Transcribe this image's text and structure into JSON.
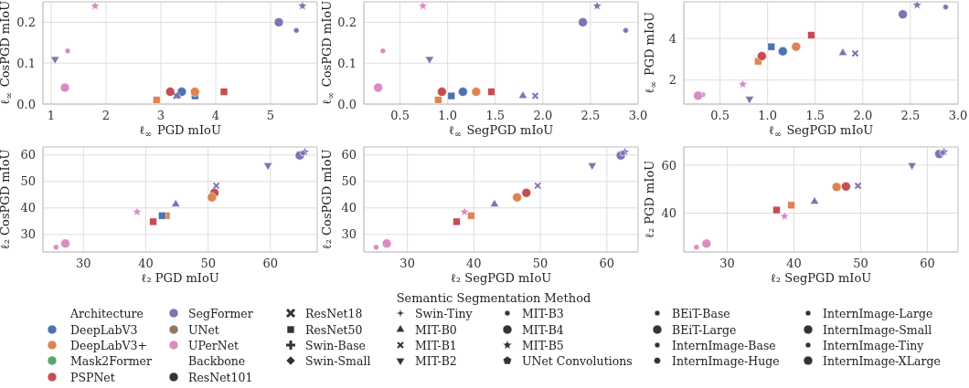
{
  "chart_data": [
    {
      "type": "scatter",
      "xlabel": "ℓ$_{∞}$ PGD mIoU",
      "ylabel": "ℓ$_{∞}$ CosPGD mIoU",
      "xlim": [
        0.85,
        5.85
      ],
      "ylim": [
        0,
        0.25
      ],
      "xticks": [
        1,
        2,
        3,
        4,
        5
      ],
      "yticks": [
        {
          "value": 0,
          "label": "0.0"
        },
        0.1,
        0.2
      ],
      "grid": true,
      "series": [
        {
          "color": "#da8bc3",
          "marker": "star",
          "x": [
            1.8
          ],
          "values": [
            0.24
          ]
        },
        {
          "color": "#da8bc3",
          "marker": "point",
          "x": [
            1.3
          ],
          "values": [
            0.13
          ]
        },
        {
          "color": "#da8bc3",
          "marker": "circle",
          "x": [
            1.25
          ],
          "values": [
            0.04
          ]
        },
        {
          "color": "#8172b3",
          "marker": "triangle-down",
          "x": [
            1.07
          ],
          "values": [
            0.11
          ]
        },
        {
          "color": "#dd8452",
          "marker": "square",
          "x": [
            2.92
          ],
          "values": [
            0.01
          ]
        },
        {
          "color": "#c44e52",
          "marker": "circle",
          "x": [
            3.17
          ],
          "values": [
            0.03
          ]
        },
        {
          "color": "#4c72b0",
          "marker": "circle",
          "x": [
            3.38
          ],
          "values": [
            0.03
          ]
        },
        {
          "color": "#4c72b0",
          "marker": "square",
          "x": [
            3.62
          ],
          "values": [
            0.02
          ]
        },
        {
          "color": "#dd8452",
          "marker": "circle",
          "x": [
            3.62
          ],
          "values": [
            0.03
          ]
        },
        {
          "color": "#c44e52",
          "marker": "square",
          "x": [
            4.15
          ],
          "values": [
            0.03
          ]
        },
        {
          "color": "#8172b3",
          "marker": "triangle",
          "x": [
            3.3
          ],
          "values": [
            0.02
          ]
        },
        {
          "color": "#8172b3",
          "marker": "x",
          "x": [
            3.28
          ],
          "values": [
            0.02
          ]
        },
        {
          "color": "#8172b3",
          "marker": "circle",
          "x": [
            5.15
          ],
          "values": [
            0.2
          ]
        },
        {
          "color": "#8172b3",
          "marker": "star",
          "x": [
            5.58
          ],
          "values": [
            0.24
          ]
        },
        {
          "color": "#8172b3",
          "marker": "point",
          "x": [
            5.47
          ],
          "values": [
            0.18
          ]
        }
      ]
    },
    {
      "type": "scatter",
      "xlabel": "ℓ$_{∞}$ SegPGD mIoU",
      "ylabel": "ℓ$_{∞}$ CosPGD mIoU",
      "xlim": [
        0.12,
        3.0
      ],
      "ylim": [
        0,
        0.25
      ],
      "xticks": [
        0.5,
        {
          "value": 1,
          "label": "1.0"
        },
        1.5,
        {
          "value": 2,
          "label": "2.0"
        },
        2.5,
        {
          "value": 3,
          "label": "3.0"
        }
      ],
      "yticks": [
        {
          "value": 0,
          "label": "0.0"
        },
        0.1,
        0.2
      ],
      "grid": true,
      "series": [
        {
          "color": "#da8bc3",
          "marker": "star",
          "x": [
            0.74
          ],
          "values": [
            0.24
          ]
        },
        {
          "color": "#da8bc3",
          "marker": "point",
          "x": [
            0.32
          ],
          "values": [
            0.13
          ]
        },
        {
          "color": "#da8bc3",
          "marker": "circle",
          "x": [
            0.27
          ],
          "values": [
            0.04
          ]
        },
        {
          "color": "#8172b3",
          "marker": "triangle-down",
          "x": [
            0.81
          ],
          "values": [
            0.11
          ]
        },
        {
          "color": "#dd8452",
          "marker": "square",
          "x": [
            0.9
          ],
          "values": [
            0.01
          ]
        },
        {
          "color": "#c44e52",
          "marker": "circle",
          "x": [
            0.94
          ],
          "values": [
            0.03
          ]
        },
        {
          "color": "#4c72b0",
          "marker": "circle",
          "x": [
            1.16
          ],
          "values": [
            0.03
          ]
        },
        {
          "color": "#4c72b0",
          "marker": "square",
          "x": [
            1.04
          ],
          "values": [
            0.02
          ]
        },
        {
          "color": "#dd8452",
          "marker": "circle",
          "x": [
            1.3
          ],
          "values": [
            0.03
          ]
        },
        {
          "color": "#c44e52",
          "marker": "square",
          "x": [
            1.46
          ],
          "values": [
            0.03
          ]
        },
        {
          "color": "#8172b3",
          "marker": "triangle",
          "x": [
            1.79
          ],
          "values": [
            0.02
          ]
        },
        {
          "color": "#8172b3",
          "marker": "x",
          "x": [
            1.92
          ],
          "values": [
            0.02
          ]
        },
        {
          "color": "#8172b3",
          "marker": "circle",
          "x": [
            2.42
          ],
          "values": [
            0.2
          ]
        },
        {
          "color": "#8172b3",
          "marker": "star",
          "x": [
            2.57
          ],
          "values": [
            0.24
          ]
        },
        {
          "color": "#8172b3",
          "marker": "point",
          "x": [
            2.87
          ],
          "values": [
            0.18
          ]
        }
      ]
    },
    {
      "type": "scatter",
      "xlabel": "ℓ$_{∞}$ SegPGD mIoU",
      "ylabel": "ℓ$_{∞}$ PGD mIoU",
      "xlim": [
        0.12,
        3.0
      ],
      "ylim": [
        0.85,
        5.75
      ],
      "xticks": [
        0.5,
        {
          "value": 1,
          "label": "1.0"
        },
        1.5,
        {
          "value": 2,
          "label": "2.0"
        },
        2.5,
        {
          "value": 3,
          "label": "3.0"
        }
      ],
      "yticks": [
        2,
        4
      ],
      "grid": true,
      "series": [
        {
          "color": "#da8bc3",
          "marker": "star",
          "x": [
            0.74
          ],
          "values": [
            1.8
          ]
        },
        {
          "color": "#da8bc3",
          "marker": "point",
          "x": [
            0.32
          ],
          "values": [
            1.3
          ]
        },
        {
          "color": "#da8bc3",
          "marker": "circle",
          "x": [
            0.27
          ],
          "values": [
            1.25
          ]
        },
        {
          "color": "#8172b3",
          "marker": "triangle-down",
          "x": [
            0.81
          ],
          "values": [
            1.1
          ]
        },
        {
          "color": "#dd8452",
          "marker": "square",
          "x": [
            0.9
          ],
          "values": [
            2.9
          ]
        },
        {
          "color": "#c44e52",
          "marker": "circle",
          "x": [
            0.94
          ],
          "values": [
            3.15
          ]
        },
        {
          "color": "#4c72b0",
          "marker": "circle",
          "x": [
            1.16
          ],
          "values": [
            3.38
          ]
        },
        {
          "color": "#4c72b0",
          "marker": "square",
          "x": [
            1.04
          ],
          "values": [
            3.6
          ]
        },
        {
          "color": "#dd8452",
          "marker": "circle",
          "x": [
            1.3
          ],
          "values": [
            3.6
          ]
        },
        {
          "color": "#c44e52",
          "marker": "square",
          "x": [
            1.46
          ],
          "values": [
            4.15
          ]
        },
        {
          "color": "#8172b3",
          "marker": "triangle",
          "x": [
            1.79
          ],
          "values": [
            3.3
          ]
        },
        {
          "color": "#8172b3",
          "marker": "x",
          "x": [
            1.92
          ],
          "values": [
            3.28
          ]
        },
        {
          "color": "#8172b3",
          "marker": "circle",
          "x": [
            2.42
          ],
          "values": [
            5.15
          ]
        },
        {
          "color": "#8172b3",
          "marker": "star",
          "x": [
            2.57
          ],
          "values": [
            5.6
          ]
        },
        {
          "color": "#8172b3",
          "marker": "point",
          "x": [
            2.87
          ],
          "values": [
            5.5
          ]
        }
      ]
    },
    {
      "type": "scatter",
      "xlabel": "ℓ₂ PGD mIoU",
      "ylabel": "ℓ₂ CosPGD mIoU",
      "xlim": [
        23.5,
        67.5
      ],
      "ylim": [
        23.4,
        63
      ],
      "xticks": [
        30,
        40,
        50,
        60
      ],
      "yticks": [
        30,
        40,
        50,
        60
      ],
      "grid": true,
      "series": [
        {
          "color": "#da8bc3",
          "marker": "star",
          "x": [
            38.6
          ],
          "values": [
            38.5
          ]
        },
        {
          "color": "#da8bc3",
          "marker": "point",
          "x": [
            25.6
          ],
          "values": [
            25.2
          ]
        },
        {
          "color": "#da8bc3",
          "marker": "circle",
          "x": [
            27.1
          ],
          "values": [
            26.6
          ]
        },
        {
          "color": "#8172b3",
          "marker": "triangle-down",
          "x": [
            59.6
          ],
          "values": [
            56.1
          ]
        },
        {
          "color": "#dd8452",
          "marker": "square",
          "x": [
            43.3
          ],
          "values": [
            37.1
          ]
        },
        {
          "color": "#c44e52",
          "marker": "circle",
          "x": [
            51.0
          ],
          "values": [
            45.7
          ]
        },
        {
          "color": "#4c72b0",
          "marker": "square",
          "x": [
            42.6
          ],
          "values": [
            37.1
          ]
        },
        {
          "color": "#dd8452",
          "marker": "circle",
          "x": [
            50.6
          ],
          "values": [
            44.0
          ]
        },
        {
          "color": "#c44e52",
          "marker": "square",
          "x": [
            41.2
          ],
          "values": [
            34.8
          ]
        },
        {
          "color": "#8172b3",
          "marker": "triangle",
          "x": [
            44.8
          ],
          "values": [
            41.4
          ]
        },
        {
          "color": "#8172b3",
          "marker": "x",
          "x": [
            51.3
          ],
          "values": [
            48.4
          ]
        },
        {
          "color": "#8172b3",
          "marker": "circle",
          "x": [
            64.7
          ],
          "values": [
            59.8
          ]
        },
        {
          "color": "#8172b3",
          "marker": "star",
          "x": [
            65.5
          ],
          "values": [
            61.1
          ]
        },
        {
          "color": "#8172b3",
          "marker": "point",
          "x": [
            65.2
          ],
          "values": [
            60.7
          ]
        }
      ]
    },
    {
      "type": "scatter",
      "xlabel": "ℓ₂ SegPGD mIoU",
      "ylabel": "ℓ₂ CosPGD mIoU",
      "xlim": [
        23.45,
        64.7
      ],
      "ylim": [
        23.4,
        63
      ],
      "xticks": [
        30,
        40,
        50,
        60
      ],
      "yticks": [
        30,
        40,
        50,
        60
      ],
      "grid": true,
      "series": [
        {
          "color": "#da8bc3",
          "marker": "star",
          "x": [
            38.6
          ],
          "values": [
            38.5
          ]
        },
        {
          "color": "#da8bc3",
          "marker": "point",
          "x": [
            25.3
          ],
          "values": [
            25.2
          ]
        },
        {
          "color": "#da8bc3",
          "marker": "circle",
          "x": [
            26.9
          ],
          "values": [
            26.6
          ]
        },
        {
          "color": "#8172b3",
          "marker": "triangle-down",
          "x": [
            57.8
          ],
          "values": [
            56.1
          ]
        },
        {
          "color": "#dd8452",
          "marker": "square",
          "x": [
            39.6
          ],
          "values": [
            37.1
          ]
        },
        {
          "color": "#c44e52",
          "marker": "circle",
          "x": [
            47.9
          ],
          "values": [
            45.7
          ]
        },
        {
          "color": "#dd8452",
          "marker": "circle",
          "x": [
            46.5
          ],
          "values": [
            44.0
          ]
        },
        {
          "color": "#c44e52",
          "marker": "square",
          "x": [
            37.4
          ],
          "values": [
            34.8
          ]
        },
        {
          "color": "#8172b3",
          "marker": "triangle",
          "x": [
            43.1
          ],
          "values": [
            41.4
          ]
        },
        {
          "color": "#8172b3",
          "marker": "x",
          "x": [
            49.6
          ],
          "values": [
            48.4
          ]
        },
        {
          "color": "#8172b3",
          "marker": "circle",
          "x": [
            62.1
          ],
          "values": [
            59.8
          ]
        },
        {
          "color": "#8172b3",
          "marker": "star",
          "x": [
            62.7
          ],
          "values": [
            61.1
          ]
        },
        {
          "color": "#8172b3",
          "marker": "point",
          "x": [
            62.4
          ],
          "values": [
            60.7
          ]
        }
      ]
    },
    {
      "type": "scatter",
      "xlabel": "ℓ₂ SegPGD mIoU",
      "ylabel": "ℓ₂ PGD mIoU",
      "xlim": [
        23.5,
        64.6
      ],
      "ylim": [
        23.8,
        67.6
      ],
      "xticks": [
        30,
        40,
        50,
        60
      ],
      "yticks": [
        40,
        60
      ],
      "grid": true,
      "series": [
        {
          "color": "#da8bc3",
          "marker": "star",
          "x": [
            38.6
          ],
          "values": [
            38.7
          ]
        },
        {
          "color": "#da8bc3",
          "marker": "point",
          "x": [
            25.4
          ],
          "values": [
            25.8
          ]
        },
        {
          "color": "#da8bc3",
          "marker": "circle",
          "x": [
            26.9
          ],
          "values": [
            27.3
          ]
        },
        {
          "color": "#8172b3",
          "marker": "triangle-down",
          "x": [
            57.7
          ],
          "values": [
            60
          ]
        },
        {
          "color": "#dd8452",
          "marker": "square",
          "x": [
            39.6
          ],
          "values": [
            43.3
          ]
        },
        {
          "color": "#c44e52",
          "marker": "circle",
          "x": [
            47.8
          ],
          "values": [
            51.1
          ]
        },
        {
          "color": "#dd8452",
          "marker": "circle",
          "x": [
            46.4
          ],
          "values": [
            50.9
          ]
        },
        {
          "color": "#c44e52",
          "marker": "square",
          "x": [
            37.4
          ],
          "values": [
            41.3
          ]
        },
        {
          "color": "#8172b3",
          "marker": "triangle",
          "x": [
            43.1
          ],
          "values": [
            44.8
          ]
        },
        {
          "color": "#8172b3",
          "marker": "x",
          "x": [
            49.6
          ],
          "values": [
            51.4
          ]
        },
        {
          "color": "#8172b3",
          "marker": "circle",
          "x": [
            61.8
          ],
          "values": [
            64.7
          ]
        },
        {
          "color": "#8172b3",
          "marker": "star",
          "x": [
            62.5
          ],
          "values": [
            65.6
          ]
        },
        {
          "color": "#8172b3",
          "marker": "point",
          "x": [
            62.3
          ],
          "values": [
            65.2
          ]
        }
      ]
    },
    {
      "type": "other",
      "legend_title": "Semantic Segmentation Method",
      "legend": "bottom",
      "series": [
        {
          "name": "Architecture"
        },
        {
          "name": "DeepLabV3",
          "color": "#4c72b0"
        },
        {
          "name": "DeepLabV3+",
          "color": "#dd8452"
        },
        {
          "name": "Mask2Former",
          "color": "#55a868"
        },
        {
          "name": "PSPNet",
          "color": "#c44e52"
        },
        {
          "name": "SegFormer",
          "color": "#8172b3"
        },
        {
          "name": "UNet",
          "color": "#937860"
        },
        {
          "name": "UPerNet",
          "color": "#da8bc3"
        },
        {
          "name": "Backbone"
        },
        {
          "name": "ResNet101",
          "marker": "circle"
        },
        {
          "name": "ResNet18",
          "marker": "cross"
        },
        {
          "name": "ResNet50",
          "marker": "square"
        },
        {
          "name": "Swin-Base",
          "marker": "plus"
        },
        {
          "name": "Swin-Small",
          "marker": "diamond"
        },
        {
          "name": "Swin-Tiny",
          "marker": "star4"
        },
        {
          "name": "MIT-B0",
          "marker": "triangle"
        },
        {
          "name": "MIT-B1",
          "marker": "x"
        },
        {
          "name": "MIT-B2",
          "marker": "triangle-down"
        },
        {
          "name": "MIT-B3",
          "marker": "point"
        },
        {
          "name": "MIT-B4",
          "marker": "circle"
        },
        {
          "name": "MIT-B5",
          "marker": "star"
        },
        {
          "name": "UNet Convolutions",
          "marker": "pentagon"
        },
        {
          "name": "BEiT-Base",
          "marker": "point"
        },
        {
          "name": "BEiT-Large",
          "marker": "circle"
        },
        {
          "name": "InternImage-Base",
          "marker": "point"
        },
        {
          "name": "InternImage-Huge",
          "marker": "hexagon"
        },
        {
          "name": "InternImage-Large",
          "marker": "point"
        },
        {
          "name": "InternImage-Small",
          "marker": "circle"
        },
        {
          "name": "InternImage-Tiny",
          "marker": "point"
        },
        {
          "name": "InternImage-XLarge",
          "marker": "circle"
        }
      ]
    }
  ]
}
